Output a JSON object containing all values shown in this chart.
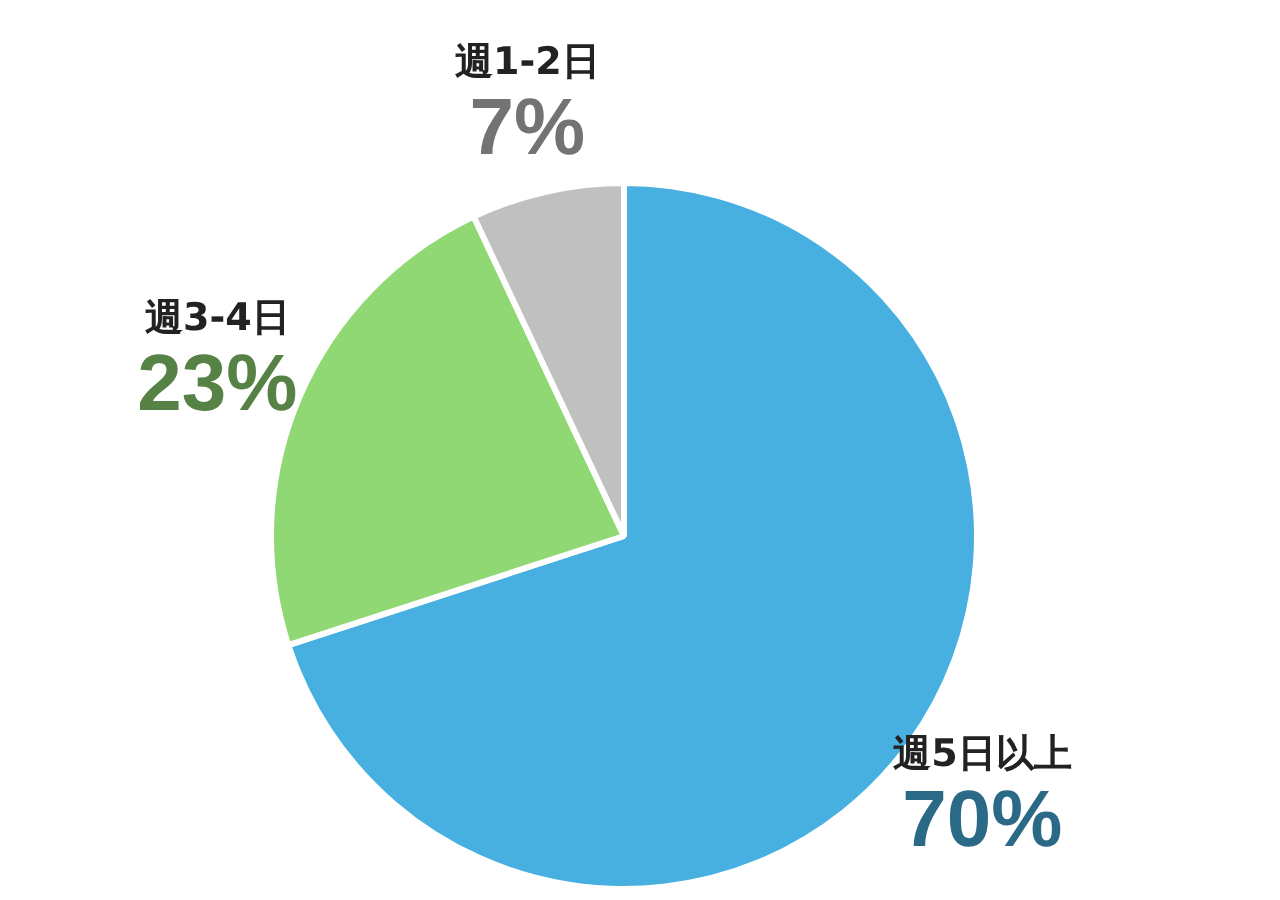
{
  "chart_data": {
    "type": "pie",
    "categories": [
      "週5日以上",
      "週3-4日",
      "週1-2日"
    ],
    "values": [
      70,
      23,
      7
    ],
    "colors": [
      "#47b0e0",
      "#8fd873",
      "#c0c0c0"
    ],
    "value_labels": [
      "70%",
      "23%",
      "7%"
    ],
    "legend": false
  }
}
